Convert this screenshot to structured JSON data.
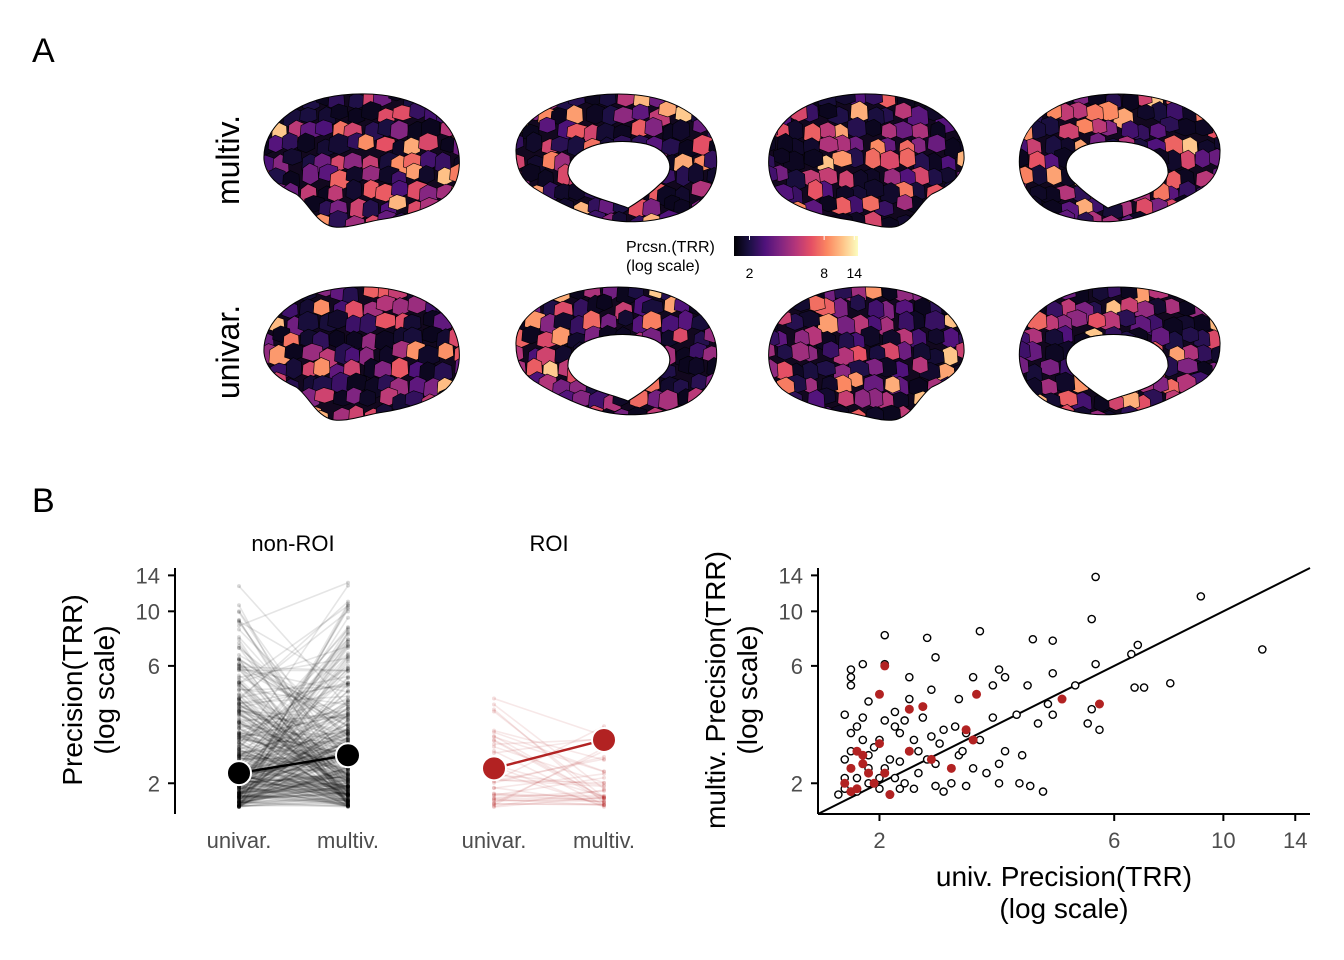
{
  "panels": {
    "a": "A",
    "b": "B"
  },
  "brain_maps": {
    "rows": [
      {
        "label": "multiv.",
        "seed": 11,
        "hot": 0.55
      },
      {
        "label": "univar.",
        "seed": 37,
        "hot": 0.3
      }
    ],
    "views": [
      "lateral-left",
      "medial-left",
      "lateral-right",
      "medial-right"
    ],
    "colormap": [
      "#000004",
      "#1c1044",
      "#4f127b",
      "#812581",
      "#b5367a",
      "#e55064",
      "#fb8761",
      "#fec287",
      "#fcfdbf"
    ],
    "colorbar": {
      "title_line1": "Prcsn.(TRR)",
      "title_line2": "(log scale)",
      "ticks": [
        "2",
        "8",
        "14"
      ],
      "tick_values": [
        2,
        8,
        14
      ],
      "range": [
        1.5,
        15
      ]
    }
  },
  "chart_data": [
    {
      "type": "line",
      "facet": "non-ROI",
      "x_categories": [
        "univar.",
        "multiv."
      ],
      "ylabel_line1": "Precision(TRR)",
      "ylabel_line2": "(log scale)",
      "y_scale": "log",
      "ylim": [
        1.5,
        15
      ],
      "y_ticks": [
        2,
        6,
        10,
        14
      ],
      "mean": {
        "univar.": 2.2,
        "multiv.": 2.6
      },
      "line_color": "#000000",
      "n_lines": 340
    },
    {
      "type": "line",
      "facet": "ROI",
      "x_categories": [
        "univar.",
        "multiv."
      ],
      "y_scale": "log",
      "ylim": [
        1.5,
        15
      ],
      "mean": {
        "univar.": 2.3,
        "multiv.": 3.0
      },
      "line_color": "#b22222",
      "n_lines": 40
    },
    {
      "type": "scatter",
      "xlabel_line1": "univ. Precision(TRR)",
      "xlabel_line2": "(log scale)",
      "ylabel_line1": "multiv. Precision(TRR)",
      "ylabel_line2": "(log scale)",
      "x_scale": "log",
      "y_scale": "log",
      "xlim": [
        1.5,
        15
      ],
      "ylim": [
        1.5,
        15
      ],
      "x_ticks": [
        2,
        6,
        10,
        14
      ],
      "y_ticks": [
        2,
        6,
        10,
        14
      ],
      "identity_line": true,
      "series": [
        {
          "group": "non-ROI",
          "style": "hollow-black",
          "points": [
            [
              5.5,
              13.8
            ],
            [
              9.0,
              11.5
            ],
            [
              12.0,
              7.0
            ],
            [
              2.05,
              8.0
            ],
            [
              2.5,
              7.8
            ],
            [
              3.2,
              8.3
            ],
            [
              4.1,
              7.7
            ],
            [
              4.5,
              7.6
            ],
            [
              5.4,
              9.3
            ],
            [
              6.7,
              7.3
            ],
            [
              6.5,
              6.7
            ],
            [
              2.05,
              6.1
            ],
            [
              2.6,
              6.5
            ],
            [
              3.5,
              5.8
            ],
            [
              3.6,
              5.4
            ],
            [
              4.5,
              5.6
            ],
            [
              5.5,
              6.1
            ],
            [
              5.0,
              5.0
            ],
            [
              6.6,
              4.9
            ],
            [
              6.9,
              4.9
            ],
            [
              7.8,
              5.1
            ],
            [
              2.3,
              5.4
            ],
            [
              3.1,
              5.4
            ],
            [
              3.4,
              5.0
            ],
            [
              4.0,
              5.0
            ],
            [
              4.4,
              4.2
            ],
            [
              5.4,
              4.0
            ],
            [
              5.3,
              3.5
            ],
            [
              5.6,
              3.3
            ],
            [
              1.75,
              5.8
            ],
            [
              1.85,
              6.1
            ],
            [
              1.75,
              5.4
            ],
            [
              2.55,
              4.8
            ],
            [
              2.3,
              4.4
            ],
            [
              2.9,
              4.4
            ],
            [
              1.75,
              5.0
            ],
            [
              1.9,
              4.3
            ],
            [
              2.15,
              3.9
            ],
            [
              2.45,
              3.7
            ],
            [
              3.4,
              3.7
            ],
            [
              3.8,
              3.8
            ],
            [
              4.2,
              3.5
            ],
            [
              4.5,
              3.8
            ],
            [
              3.0,
              3.2
            ],
            [
              3.6,
              2.7
            ],
            [
              3.9,
              2.6
            ],
            [
              3.85,
              2.0
            ],
            [
              4.05,
              1.95
            ],
            [
              4.3,
              1.85
            ],
            [
              3.2,
              3.0
            ],
            [
              2.6,
              2.4
            ],
            [
              2.9,
              2.6
            ],
            [
              3.3,
              2.2
            ],
            [
              3.5,
              2.4
            ],
            [
              2.4,
              2.2
            ],
            [
              2.5,
              2.5
            ],
            [
              3.1,
              2.3
            ],
            [
              2.8,
              2.0
            ],
            [
              2.6,
              1.95
            ],
            [
              2.7,
              1.85
            ],
            [
              3.0,
              1.95
            ],
            [
              3.5,
              2.0
            ],
            [
              2.95,
              2.7
            ],
            [
              2.65,
              2.9
            ],
            [
              2.85,
              3.4
            ],
            [
              2.3,
              2.7
            ],
            [
              2.2,
              3.2
            ],
            [
              2.35,
              3.0
            ],
            [
              2.55,
              3.1
            ],
            [
              2.7,
              3.3
            ],
            [
              2.05,
              2.3
            ],
            [
              2.1,
              2.5
            ],
            [
              2.15,
              2.1
            ],
            [
              2.25,
              2.0
            ],
            [
              2.35,
              1.9
            ],
            [
              2.2,
              2.45
            ],
            [
              2.4,
              2.7
            ],
            [
              1.95,
              2.8
            ],
            [
              2.0,
              3.0
            ],
            [
              2.15,
              3.4
            ],
            [
              2.05,
              3.6
            ],
            [
              2.25,
              3.6
            ],
            [
              1.8,
              3.4
            ],
            [
              1.85,
              3.7
            ],
            [
              1.7,
              3.8
            ],
            [
              1.75,
              3.2
            ],
            [
              1.85,
              3.0
            ],
            [
              1.9,
              2.6
            ],
            [
              1.7,
              2.5
            ],
            [
              1.75,
              2.3
            ],
            [
              1.8,
              2.1
            ],
            [
              1.9,
              2.0
            ],
            [
              2.0,
              1.9
            ],
            [
              1.7,
              1.9
            ],
            [
              1.8,
              1.85
            ],
            [
              1.7,
              2.1
            ],
            [
              1.65,
              1.8
            ],
            [
              1.75,
              2.7
            ],
            [
              1.9,
              2.3
            ],
            [
              2.0,
              2.1
            ],
            [
              2.1,
              1.8
            ],
            [
              2.2,
              1.9
            ]
          ]
        },
        {
          "group": "ROI",
          "style": "filled-red",
          "color": "#b22222",
          "points": [
            [
              2.05,
              6.0
            ],
            [
              2.0,
              4.6
            ],
            [
              2.3,
              4.0
            ],
            [
              2.45,
              4.1
            ],
            [
              3.15,
              4.6
            ],
            [
              3.1,
              3.0
            ],
            [
              4.7,
              4.4
            ],
            [
              5.6,
              4.2
            ],
            [
              3.0,
              3.3
            ],
            [
              2.3,
              2.7
            ],
            [
              2.55,
              2.5
            ],
            [
              2.8,
              2.3
            ],
            [
              2.0,
              2.9
            ],
            [
              1.85,
              2.4
            ],
            [
              1.8,
              2.7
            ],
            [
              1.9,
              2.2
            ],
            [
              1.75,
              2.3
            ],
            [
              1.95,
              2.0
            ],
            [
              1.85,
              2.6
            ],
            [
              1.8,
              1.9
            ],
            [
              1.75,
              1.85
            ],
            [
              2.05,
              2.2
            ],
            [
              2.1,
              1.8
            ],
            [
              1.7,
              2.0
            ]
          ]
        }
      ]
    }
  ]
}
